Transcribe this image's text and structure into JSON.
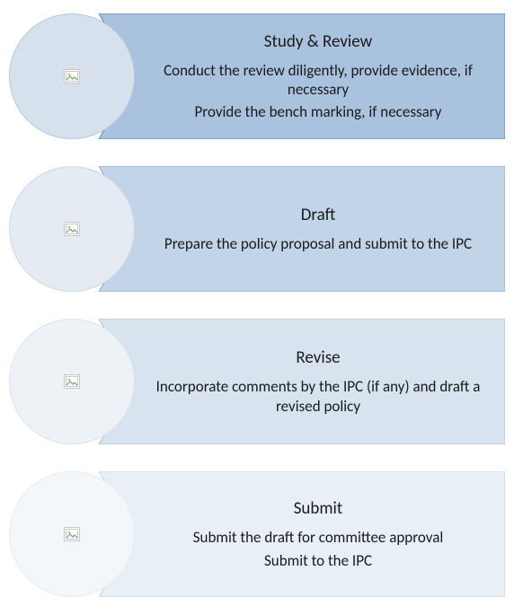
{
  "diagram": {
    "type": "infographic",
    "background_color": "#ffffff",
    "text_color": "#1a1a1a",
    "title_fontsize": 19,
    "body_fontsize": 17,
    "step_height": 140,
    "step_gap": 30,
    "circle_diameter": 140,
    "circle_border_width": 1,
    "steps": [
      {
        "title": "Study & Review",
        "lines": [
          "Conduct the review diligently, provide evidence, if necessary",
          "Provide the bench marking, if necessary"
        ],
        "arrow_fill": "#a9c3df",
        "arrow_stroke": "#5f85b4",
        "circle_fill": "#d7e1ee",
        "circle_stroke": "#b7c9dd",
        "icon": "image-placeholder"
      },
      {
        "title": "Draft",
        "lines": [
          "Prepare the policy proposal and submit to the IPC"
        ],
        "arrow_fill": "#c2d4e7",
        "arrow_stroke": "#8aa8c9",
        "circle_fill": "#e4ebf3",
        "circle_stroke": "#cdd9e7",
        "icon": "image-placeholder"
      },
      {
        "title": "Revise",
        "lines": [
          "Incorporate comments by the IPC (if any) and draft a revised policy"
        ],
        "arrow_fill": "#d7e3ef",
        "arrow_stroke": "#a9c0d8",
        "circle_fill": "#edf2f7",
        "circle_stroke": "#dbe3ed",
        "icon": "image-placeholder"
      },
      {
        "title": "Submit",
        "lines": [
          "Submit the draft for committee approval",
          "Submit to the IPC"
        ],
        "arrow_fill": "#e8eff6",
        "arrow_stroke": "#c2d2e2",
        "circle_fill": "#f4f7fa",
        "circle_stroke": "#e6ecf2",
        "icon": "image-placeholder"
      }
    ]
  }
}
